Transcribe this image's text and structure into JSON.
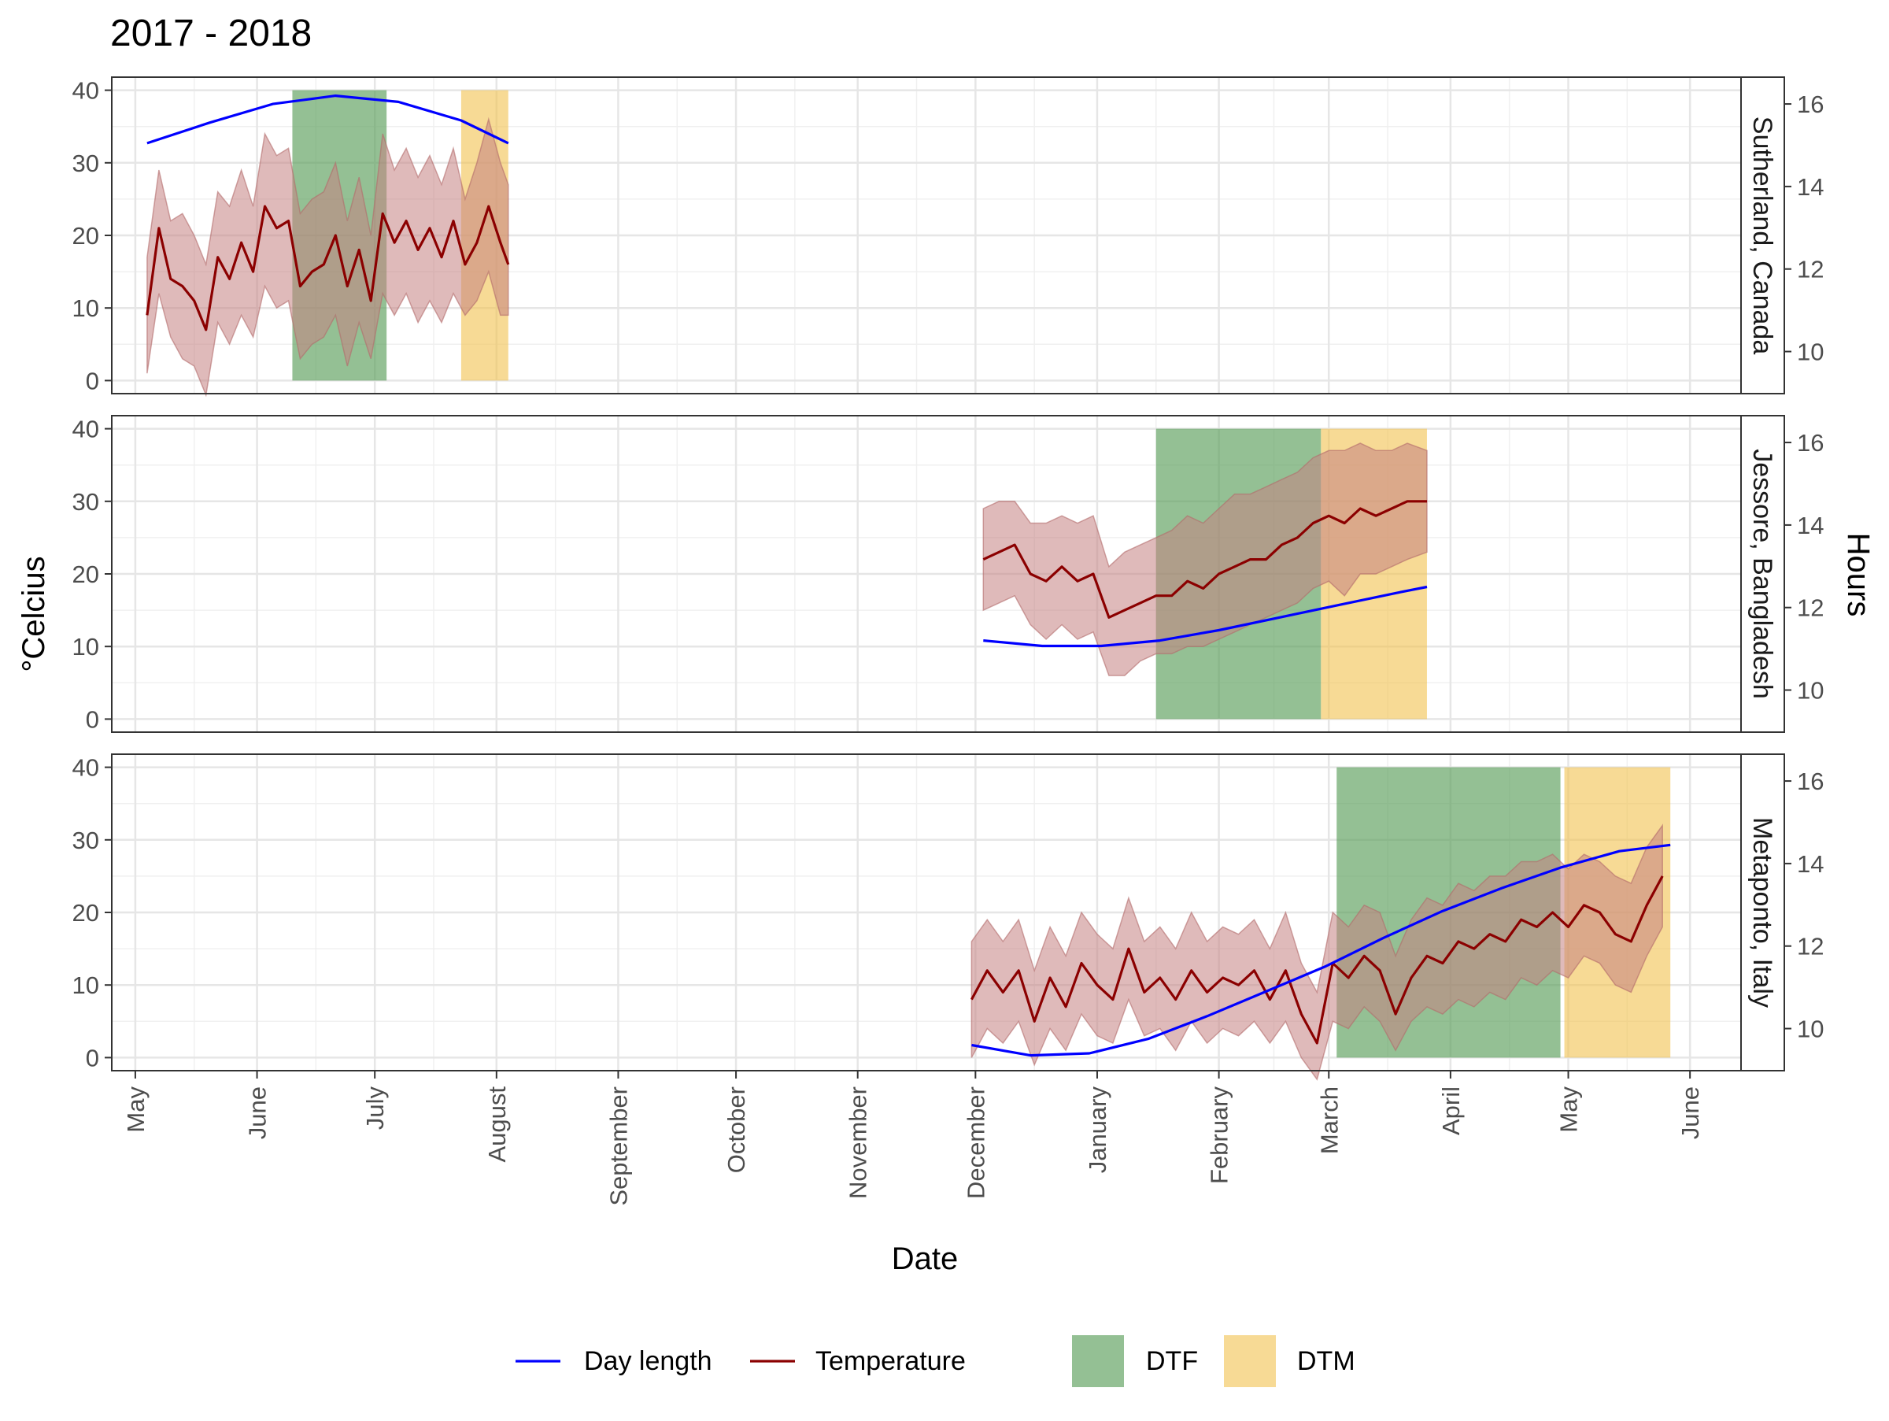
{
  "chart_data": {
    "type": "line",
    "title": "2017 - 2018",
    "xlabel": "Date",
    "ylabel_left": "°Celcius",
    "ylabel_right": "Hours",
    "x_axis": {
      "type": "date",
      "range": [
        "2017-04-25",
        "2018-06-14"
      ],
      "ticks": [
        {
          "date": "2017-05-01",
          "label": "May"
        },
        {
          "date": "2017-06-01",
          "label": "June"
        },
        {
          "date": "2017-07-01",
          "label": "July"
        },
        {
          "date": "2017-08-01",
          "label": "August"
        },
        {
          "date": "2017-09-01",
          "label": "September"
        },
        {
          "date": "2017-10-01",
          "label": "October"
        },
        {
          "date": "2017-11-01",
          "label": "November"
        },
        {
          "date": "2017-12-01",
          "label": "December"
        },
        {
          "date": "2018-01-01",
          "label": "January"
        },
        {
          "date": "2018-02-01",
          "label": "February"
        },
        {
          "date": "2018-03-01",
          "label": "March"
        },
        {
          "date": "2018-04-01",
          "label": "April"
        },
        {
          "date": "2018-05-01",
          "label": "May"
        },
        {
          "date": "2018-06-01",
          "label": "June"
        }
      ]
    },
    "y_left": {
      "range": [
        -1.8,
        41.8
      ],
      "ticks": [
        0,
        10,
        20,
        30,
        40
      ]
    },
    "y_right": {
      "range": [
        8.98,
        16.65
      ],
      "ticks": [
        10,
        12,
        14,
        16
      ]
    },
    "grid": true,
    "legend": {
      "position": "bottom",
      "items": [
        {
          "label": "Day length",
          "kind": "line",
          "color": "#0000ff"
        },
        {
          "label": "Temperature",
          "kind": "line",
          "color": "#8b0000"
        },
        {
          "label": "DTF",
          "kind": "fill",
          "color": "#5a9e5a"
        },
        {
          "label": "DTM",
          "kind": "fill",
          "color": "#f2c14e"
        }
      ]
    },
    "colors": {
      "day_length": "#0000ff",
      "temperature": "#8b0000",
      "temp_ribbon": "#c48282",
      "dtf": "#5a9e5a",
      "dtm": "#f2c14e"
    },
    "panels": [
      {
        "strip": "Sutherland, Canada",
        "dtf": [
          "2017-06-10",
          "2017-07-04"
        ],
        "dtm": [
          "2017-07-23",
          "2017-08-04"
        ],
        "day_length": [
          [
            "2017-05-04",
            15.05
          ],
          [
            "2017-05-20",
            15.55
          ],
          [
            "2017-06-05",
            16.0
          ],
          [
            "2017-06-21",
            16.2
          ],
          [
            "2017-07-07",
            16.05
          ],
          [
            "2017-07-23",
            15.6
          ],
          [
            "2017-08-04",
            15.05
          ]
        ],
        "temperature": [
          [
            "2017-05-04",
            9,
            1,
            17
          ],
          [
            "2017-05-07",
            21,
            12,
            29
          ],
          [
            "2017-05-10",
            14,
            6,
            22
          ],
          [
            "2017-05-13",
            13,
            3,
            23
          ],
          [
            "2017-05-16",
            11,
            2,
            20
          ],
          [
            "2017-05-19",
            7,
            -2,
            16
          ],
          [
            "2017-05-22",
            17,
            8,
            26
          ],
          [
            "2017-05-25",
            14,
            5,
            24
          ],
          [
            "2017-05-28",
            19,
            9,
            29
          ],
          [
            "2017-05-31",
            15,
            6,
            24
          ],
          [
            "2017-06-03",
            24,
            13,
            34
          ],
          [
            "2017-06-06",
            21,
            10,
            31
          ],
          [
            "2017-06-09",
            22,
            11,
            32
          ],
          [
            "2017-06-12",
            13,
            3,
            23
          ],
          [
            "2017-06-15",
            15,
            5,
            25
          ],
          [
            "2017-06-18",
            16,
            6,
            26
          ],
          [
            "2017-06-21",
            20,
            9,
            30
          ],
          [
            "2017-06-24",
            13,
            2,
            22
          ],
          [
            "2017-06-27",
            18,
            8,
            28
          ],
          [
            "2017-06-30",
            11,
            3,
            20
          ],
          [
            "2017-07-03",
            23,
            12,
            34
          ],
          [
            "2017-07-06",
            19,
            9,
            29
          ],
          [
            "2017-07-09",
            22,
            12,
            32
          ],
          [
            "2017-07-12",
            18,
            8,
            28
          ],
          [
            "2017-07-15",
            21,
            11,
            31
          ],
          [
            "2017-07-18",
            17,
            8,
            27
          ],
          [
            "2017-07-21",
            22,
            12,
            32
          ],
          [
            "2017-07-24",
            16,
            9,
            25
          ],
          [
            "2017-07-27",
            19,
            11,
            30
          ],
          [
            "2017-07-30",
            24,
            15,
            36
          ],
          [
            "2017-08-02",
            19,
            9,
            30
          ],
          [
            "2017-08-04",
            16,
            9,
            27
          ]
        ]
      },
      {
        "strip": "Jessore, Bangladesh",
        "dtf": [
          "2018-01-16",
          "2018-02-27"
        ],
        "dtm": [
          "2018-02-27",
          "2018-03-26"
        ],
        "day_length": [
          [
            "2017-12-03",
            11.2
          ],
          [
            "2017-12-18",
            11.07
          ],
          [
            "2018-01-02",
            11.07
          ],
          [
            "2018-01-17",
            11.2
          ],
          [
            "2018-02-01",
            11.45
          ],
          [
            "2018-02-16",
            11.75
          ],
          [
            "2018-03-03",
            12.05
          ],
          [
            "2018-03-18",
            12.35
          ],
          [
            "2018-03-26",
            12.5
          ]
        ],
        "temperature": [
          [
            "2017-12-03",
            22,
            15,
            29
          ],
          [
            "2017-12-07",
            23,
            16,
            30
          ],
          [
            "2017-12-11",
            24,
            17,
            30
          ],
          [
            "2017-12-15",
            20,
            13,
            27
          ],
          [
            "2017-12-19",
            19,
            11,
            27
          ],
          [
            "2017-12-23",
            21,
            13,
            28
          ],
          [
            "2017-12-27",
            19,
            11,
            27
          ],
          [
            "2017-12-31",
            20,
            12,
            28
          ],
          [
            "2018-01-04",
            14,
            6,
            21
          ],
          [
            "2018-01-08",
            15,
            6,
            23
          ],
          [
            "2018-01-12",
            16,
            8,
            24
          ],
          [
            "2018-01-16",
            17,
            9,
            25
          ],
          [
            "2018-01-20",
            17,
            9,
            26
          ],
          [
            "2018-01-24",
            19,
            10,
            28
          ],
          [
            "2018-01-28",
            18,
            10,
            27
          ],
          [
            "2018-02-01",
            20,
            11,
            29
          ],
          [
            "2018-02-05",
            21,
            12,
            31
          ],
          [
            "2018-02-09",
            22,
            13,
            31
          ],
          [
            "2018-02-13",
            22,
            14,
            32
          ],
          [
            "2018-02-17",
            24,
            15,
            33
          ],
          [
            "2018-02-21",
            25,
            16,
            34
          ],
          [
            "2018-02-25",
            27,
            18,
            36
          ],
          [
            "2018-03-01",
            28,
            19,
            37
          ],
          [
            "2018-03-05",
            27,
            17,
            37
          ],
          [
            "2018-03-09",
            29,
            20,
            38
          ],
          [
            "2018-03-13",
            28,
            20,
            37
          ],
          [
            "2018-03-17",
            29,
            21,
            37
          ],
          [
            "2018-03-21",
            30,
            22,
            38
          ],
          [
            "2018-03-26",
            30,
            23,
            37
          ]
        ]
      },
      {
        "strip": "Metaponto, Italy",
        "dtf": [
          "2018-03-03",
          "2018-04-29"
        ],
        "dtm": [
          "2018-04-30",
          "2018-05-27"
        ],
        "day_length": [
          [
            "2017-11-30",
            9.6
          ],
          [
            "2017-12-15",
            9.35
          ],
          [
            "2017-12-30",
            9.4
          ],
          [
            "2018-01-14",
            9.75
          ],
          [
            "2018-01-29",
            10.3
          ],
          [
            "2018-02-13",
            10.9
          ],
          [
            "2018-02-28",
            11.5
          ],
          [
            "2018-03-15",
            12.2
          ],
          [
            "2018-03-30",
            12.85
          ],
          [
            "2018-04-14",
            13.4
          ],
          [
            "2018-04-29",
            13.9
          ],
          [
            "2018-05-14",
            14.3
          ],
          [
            "2018-05-27",
            14.45
          ]
        ],
        "temperature": [
          [
            "2017-11-30",
            8,
            0,
            16
          ],
          [
            "2017-12-04",
            12,
            4,
            19
          ],
          [
            "2017-12-08",
            9,
            2,
            16
          ],
          [
            "2017-12-12",
            12,
            5,
            19
          ],
          [
            "2017-12-16",
            5,
            -1,
            12
          ],
          [
            "2017-12-20",
            11,
            4,
            18
          ],
          [
            "2017-12-24",
            7,
            1,
            14
          ],
          [
            "2017-12-28",
            13,
            6,
            20
          ],
          [
            "2018-01-01",
            10,
            3,
            17
          ],
          [
            "2018-01-05",
            8,
            2,
            15
          ],
          [
            "2018-01-09",
            15,
            8,
            22
          ],
          [
            "2018-01-13",
            9,
            3,
            16
          ],
          [
            "2018-01-17",
            11,
            4,
            18
          ],
          [
            "2018-01-21",
            8,
            1,
            15
          ],
          [
            "2018-01-25",
            12,
            5,
            20
          ],
          [
            "2018-01-29",
            9,
            2,
            16
          ],
          [
            "2018-02-02",
            11,
            4,
            18
          ],
          [
            "2018-02-06",
            10,
            3,
            17
          ],
          [
            "2018-02-10",
            12,
            5,
            19
          ],
          [
            "2018-02-14",
            8,
            2,
            15
          ],
          [
            "2018-02-18",
            12,
            5,
            20
          ],
          [
            "2018-02-22",
            6,
            0,
            13
          ],
          [
            "2018-02-26",
            2,
            -3,
            9
          ],
          [
            "2018-03-02",
            13,
            5,
            20
          ],
          [
            "2018-03-06",
            11,
            4,
            18
          ],
          [
            "2018-03-10",
            14,
            7,
            21
          ],
          [
            "2018-03-14",
            12,
            5,
            20
          ],
          [
            "2018-03-18",
            6,
            1,
            14
          ],
          [
            "2018-03-22",
            11,
            5,
            19
          ],
          [
            "2018-03-26",
            14,
            7,
            22
          ],
          [
            "2018-03-30",
            13,
            6,
            21
          ],
          [
            "2018-04-03",
            16,
            8,
            24
          ],
          [
            "2018-04-07",
            15,
            7,
            23
          ],
          [
            "2018-04-11",
            17,
            9,
            25
          ],
          [
            "2018-04-15",
            16,
            8,
            25
          ],
          [
            "2018-04-19",
            19,
            11,
            27
          ],
          [
            "2018-04-23",
            18,
            10,
            27
          ],
          [
            "2018-04-27",
            20,
            12,
            28
          ],
          [
            "2018-05-01",
            18,
            11,
            26
          ],
          [
            "2018-05-05",
            21,
            14,
            28
          ],
          [
            "2018-05-09",
            20,
            13,
            27
          ],
          [
            "2018-05-13",
            17,
            10,
            25
          ],
          [
            "2018-05-17",
            16,
            9,
            24
          ],
          [
            "2018-05-21",
            21,
            14,
            29
          ],
          [
            "2018-05-25",
            25,
            18,
            32
          ]
        ]
      }
    ]
  }
}
